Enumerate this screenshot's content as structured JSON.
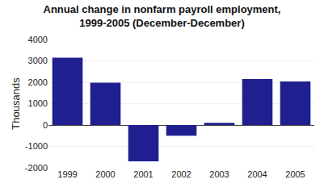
{
  "chart_data": {
    "type": "bar",
    "title": "Annual change in nonfarm payroll employment,\n1999-2005 (December-December)",
    "ylabel": "Thousands",
    "categories": [
      "1999",
      "2000",
      "2001",
      "2002",
      "2003",
      "2004",
      "2005"
    ],
    "values": [
      3152,
      1983,
      -1702,
      -501,
      105,
      2152,
      2040
    ],
    "color": "#1f1f8f",
    "ylim": [
      -2000,
      4000
    ],
    "yticks": [
      -2000,
      -1000,
      0,
      1000,
      2000,
      3000,
      4000
    ],
    "grid": true
  }
}
